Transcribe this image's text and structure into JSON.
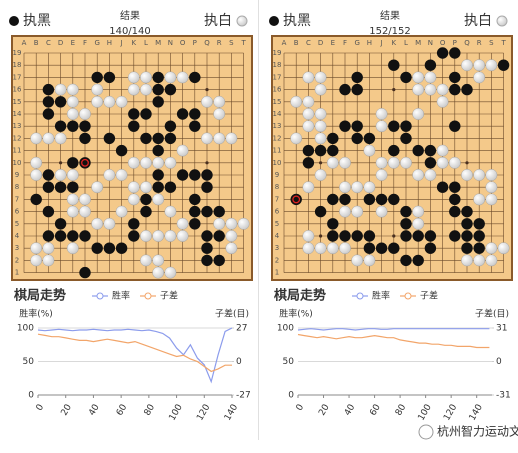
{
  "panels": [
    {
      "header": {
        "black": "执黑",
        "title": "结果",
        "moves": "140/140",
        "white": "执白"
      },
      "board": {
        "columns": [
          "A",
          "B",
          "C",
          "D",
          "E",
          "F",
          "G",
          "H",
          "J",
          "K",
          "L",
          "M",
          "N",
          "O",
          "P",
          "Q",
          "R",
          "S",
          "T"
        ],
        "rows": [
          19,
          18,
          17,
          16,
          15,
          14,
          13,
          12,
          11,
          10,
          9,
          8,
          7,
          6,
          5,
          4,
          3,
          2,
          1
        ]
      }
    },
    {
      "header": {
        "black": "执黑",
        "title": "结果",
        "moves": "152/152",
        "white": "执白"
      },
      "board": {
        "columns": [
          "A",
          "B",
          "C",
          "D",
          "E",
          "F",
          "G",
          "H",
          "J",
          "K",
          "L",
          "M",
          "N",
          "O",
          "P",
          "Q",
          "R",
          "S",
          "T"
        ],
        "rows": [
          19,
          18,
          17,
          16,
          15,
          14,
          13,
          12,
          11,
          10,
          9,
          8,
          7,
          6,
          5,
          4,
          3,
          2,
          1
        ]
      }
    }
  ],
  "chart_data": [
    {
      "type": "line",
      "title": "棋局走势",
      "ylabel": "胜率(%)",
      "y2label": "子差(目)",
      "x": [
        0,
        5,
        10,
        15,
        20,
        25,
        30,
        35,
        40,
        45,
        50,
        55,
        60,
        65,
        70,
        75,
        80,
        85,
        90,
        95,
        100,
        105,
        110,
        115,
        120,
        125,
        130,
        135,
        140
      ],
      "series": [
        {
          "name": "胜率",
          "color": "#8c9cec",
          "values": [
            97,
            96,
            97,
            98,
            97,
            96,
            97,
            97,
            98,
            97,
            96,
            97,
            97,
            98,
            97,
            96,
            97,
            95,
            92,
            85,
            70,
            60,
            75,
            55,
            45,
            20,
            60,
            95,
            100
          ]
        },
        {
          "name": "子差",
          "color": "#f2a56a",
          "axis": "y2",
          "values": [
            22,
            21,
            20,
            20,
            19,
            18,
            17,
            17,
            16,
            17,
            18,
            17,
            16,
            15,
            16,
            14,
            12,
            10,
            8,
            6,
            4,
            5,
            2,
            0,
            -4,
            -8,
            -6,
            -3,
            -3
          ]
        }
      ],
      "xlim": [
        0,
        140
      ],
      "xticks": [
        0,
        20,
        40,
        60,
        80,
        100,
        120,
        140
      ],
      "ylim": [
        0,
        100
      ],
      "yticks": [
        0,
        50,
        100
      ],
      "y2lim": [
        -27,
        27
      ],
      "y2ticks": [
        -27,
        0,
        27
      ],
      "grid": true
    },
    {
      "type": "line",
      "title": "棋局走势",
      "ylabel": "胜率(%)",
      "y2label": "子差(目)",
      "x": [
        0,
        5,
        10,
        15,
        20,
        25,
        30,
        35,
        40,
        45,
        50,
        55,
        60,
        65,
        70,
        75,
        80,
        85,
        90,
        95,
        100,
        105,
        110,
        115,
        120,
        125,
        130,
        135,
        140,
        145,
        150
      ],
      "series": [
        {
          "name": "胜率",
          "color": "#8c9cec",
          "values": [
            97,
            98,
            99,
            98,
            97,
            98,
            99,
            99,
            98,
            97,
            98,
            99,
            99,
            98,
            98,
            99,
            99,
            99,
            99,
            99,
            99,
            99,
            99,
            99,
            99,
            99,
            99,
            99,
            99,
            99,
            99
          ]
        },
        {
          "name": "子差",
          "color": "#f2a56a",
          "axis": "y2",
          "values": [
            25,
            24,
            23,
            22,
            23,
            22,
            21,
            22,
            23,
            22,
            22,
            23,
            24,
            23,
            22,
            22,
            20,
            19,
            18,
            17,
            17,
            16,
            16,
            15,
            15,
            14,
            14,
            14,
            13,
            13,
            13
          ]
        }
      ],
      "xlim": [
        0,
        152
      ],
      "xticks": [
        0,
        20,
        40,
        60,
        80,
        100,
        120,
        140
      ],
      "ylim": [
        0,
        100
      ],
      "yticks": [
        0,
        50,
        100
      ],
      "y2lim": [
        -31,
        31
      ],
      "y2ticks": [
        -31,
        0,
        31
      ],
      "grid": true
    }
  ],
  "footer": "杭州智力运动文化"
}
